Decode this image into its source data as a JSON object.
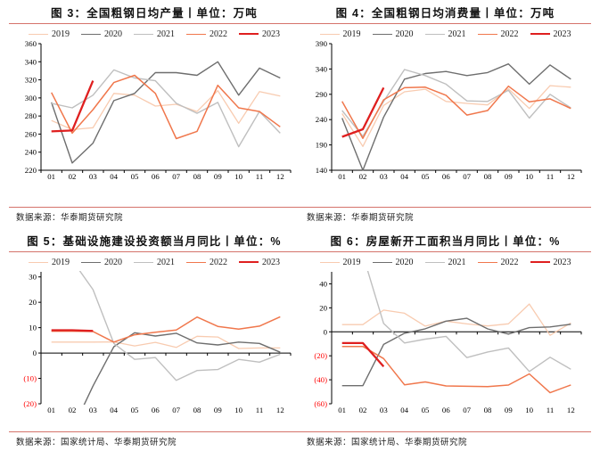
{
  "page": {
    "background": "#FFFFFF"
  },
  "colors": {
    "series_2019": "#F8CBB0",
    "series_2020": "#6E6E6E",
    "series_2021": "#BFBFBF",
    "series_2022": "#F0774C",
    "series_2023": "#DF1F1F",
    "divider": "#D5736B",
    "negative_tick": "#FF0000",
    "axis": "#000000"
  },
  "chart_data": [
    {
      "type": "line",
      "title": "图 3：全国粗钢日均产量丨单位：万吨",
      "source": "数据来源：华泰期货研究院",
      "categories": [
        "01",
        "02",
        "03",
        "04",
        "05",
        "06",
        "07",
        "08",
        "09",
        "10",
        "11",
        "12"
      ],
      "ylim": [
        220,
        360
      ],
      "grid": false,
      "legend_position": "top",
      "yticks": [
        {
          "v": 220,
          "label": "220"
        },
        {
          "v": 240,
          "label": "240"
        },
        {
          "v": 260,
          "label": "260"
        },
        {
          "v": 280,
          "label": "280"
        },
        {
          "v": 300,
          "label": "300"
        },
        {
          "v": 320,
          "label": "320"
        },
        {
          "v": 340,
          "label": "340"
        },
        {
          "v": 360,
          "label": "360"
        }
      ],
      "series": [
        {
          "name": "2019",
          "color": "#F8CBB0",
          "width": 1.3,
          "values": [
            275,
            265,
            267,
            305,
            303,
            291,
            293,
            285,
            308,
            272,
            307,
            302
          ]
        },
        {
          "name": "2020",
          "color": "#6E6E6E",
          "width": 1.4,
          "values": [
            295,
            228,
            250,
            297,
            305,
            328,
            328,
            325,
            340,
            303,
            333,
            322
          ]
        },
        {
          "name": "2021",
          "color": "#BFBFBF",
          "width": 1.4,
          "values": [
            294,
            289,
            303,
            331,
            322,
            319,
            294,
            283,
            295,
            246,
            285,
            261
          ]
        },
        {
          "name": "2022",
          "color": "#F0774C",
          "width": 1.5,
          "values": [
            306,
            261,
            287,
            317,
            325,
            305,
            255,
            263,
            314,
            289,
            285,
            268
          ]
        },
        {
          "name": "2023",
          "color": "#DF1F1F",
          "width": 2.3,
          "values": [
            263,
            264,
            319
          ]
        }
      ]
    },
    {
      "type": "line",
      "title": "图 4：全国粗钢日均消费量丨单位：万吨",
      "source": "数据来源：华泰期货研究院",
      "categories": [
        "01",
        "02",
        "03",
        "04",
        "05",
        "06",
        "07",
        "08",
        "09",
        "10",
        "11",
        "12"
      ],
      "ylim": [
        140,
        390
      ],
      "grid": false,
      "legend_position": "top",
      "yticks": [
        {
          "v": 140,
          "label": "140"
        },
        {
          "v": 190,
          "label": "190"
        },
        {
          "v": 240,
          "label": "240"
        },
        {
          "v": 290,
          "label": "290"
        },
        {
          "v": 340,
          "label": "340"
        },
        {
          "v": 390,
          "label": "390"
        }
      ],
      "series": [
        {
          "name": "2019",
          "color": "#F8CBB0",
          "width": 1.3,
          "values": [
            252,
            187,
            268,
            295,
            300,
            276,
            272,
            269,
            301,
            262,
            307,
            304
          ]
        },
        {
          "name": "2020",
          "color": "#6E6E6E",
          "width": 1.4,
          "values": [
            243,
            140,
            245,
            320,
            331,
            335,
            327,
            333,
            350,
            310,
            348,
            320
          ]
        },
        {
          "name": "2021",
          "color": "#BFBFBF",
          "width": 1.4,
          "values": [
            258,
            207,
            276,
            339,
            327,
            310,
            277,
            276,
            298,
            243,
            290,
            263
          ]
        },
        {
          "name": "2022",
          "color": "#F0774C",
          "width": 1.5,
          "values": [
            276,
            203,
            279,
            303,
            304,
            288,
            249,
            258,
            306,
            275,
            281,
            262
          ]
        },
        {
          "name": "2023",
          "color": "#DF1F1F",
          "width": 2.3,
          "values": [
            206,
            221,
            303
          ]
        }
      ]
    },
    {
      "type": "line",
      "title": "图 5：基础设施建设投资额当月同比丨单位：%",
      "source": "数据来源：国家统计局、华泰期货研究院",
      "categories": [
        "01",
        "02",
        "03",
        "04",
        "05",
        "06",
        "07",
        "08",
        "09",
        "10",
        "11",
        "12"
      ],
      "ylim": [
        -20,
        32
      ],
      "grid": false,
      "legend_position": "top",
      "yticks": [
        {
          "v": -20,
          "label": "(20)"
        },
        {
          "v": -10,
          "label": "(10)"
        },
        {
          "v": 0,
          "label": "0"
        },
        {
          "v": 10,
          "label": "10"
        },
        {
          "v": 20,
          "label": "20"
        },
        {
          "v": 30,
          "label": "30"
        }
      ],
      "series": [
        {
          "name": "2019",
          "color": "#F8CBB0",
          "width": 1.3,
          "values": [
            4.3,
            4.3,
            4.3,
            4.4,
            2.8,
            4.2,
            2.2,
            6.6,
            6.3,
            1.8,
            2.0,
            2.0
          ]
        },
        {
          "name": "2020",
          "color": "#6E6E6E",
          "width": 1.4,
          "values": [
            -30.3,
            -30.3,
            -13.0,
            2.5,
            8.0,
            6.7,
            7.8,
            4.0,
            3.2,
            4.3,
            3.8,
            0.3
          ]
        },
        {
          "name": "2021",
          "color": "#BFBFBF",
          "width": 1.4,
          "values": [
            36.6,
            36.6,
            25.0,
            3.8,
            -2.5,
            -1.8,
            -10.8,
            -6.9,
            -6.5,
            -2.5,
            -3.6,
            -0.5
          ]
        },
        {
          "name": "2022",
          "color": "#F0774C",
          "width": 1.5,
          "values": [
            8.6,
            8.6,
            8.5,
            4.3,
            7.2,
            8.2,
            9.1,
            14.2,
            10.5,
            9.4,
            10.6,
            14.3
          ]
        },
        {
          "name": "2023",
          "color": "#DF1F1F",
          "width": 2.3,
          "values": [
            9.0,
            9.0,
            8.7
          ]
        }
      ]
    },
    {
      "type": "line",
      "title": "图 6：房屋新开工面积当月同比丨单位：%",
      "source": "数据来源：国家统计局、华泰期货研究院",
      "categories": [
        "01",
        "02",
        "03",
        "04",
        "05",
        "06",
        "07",
        "08",
        "09",
        "10",
        "11",
        "12"
      ],
      "ylim": [
        -60,
        50
      ],
      "grid": false,
      "legend_position": "top",
      "yticks": [
        {
          "v": -60,
          "label": "(60)"
        },
        {
          "v": -40,
          "label": "(40)"
        },
        {
          "v": -20,
          "label": "(20)"
        },
        {
          "v": 0,
          "label": "0"
        },
        {
          "v": 20,
          "label": "20"
        },
        {
          "v": 40,
          "label": "40"
        }
      ],
      "series": [
        {
          "name": "2019",
          "color": "#F8CBB0",
          "width": 1.3,
          "values": [
            6.0,
            6.0,
            18.1,
            15.5,
            4.7,
            8.9,
            6.6,
            4.9,
            6.7,
            23.2,
            -2.9,
            7.4
          ]
        },
        {
          "name": "2020",
          "color": "#6E6E6E",
          "width": 1.4,
          "values": [
            -44.9,
            -44.9,
            -10.5,
            -1.2,
            2.5,
            8.9,
            11.3,
            2.4,
            -1.9,
            3.5,
            4.1,
            6.3
          ]
        },
        {
          "name": "2021",
          "color": "#BFBFBF",
          "width": 1.4,
          "values": [
            64.3,
            64.3,
            7.0,
            -9.3,
            -6.1,
            -3.8,
            -21.5,
            -16.8,
            -13.5,
            -33.1,
            -21.2,
            -31.2
          ]
        },
        {
          "name": "2022",
          "color": "#F0774C",
          "width": 1.5,
          "values": [
            -12.2,
            -12.2,
            -22.3,
            -44.2,
            -41.8,
            -45.1,
            -45.4,
            -45.7,
            -44.4,
            -35.1,
            -50.8,
            -44.3
          ]
        },
        {
          "name": "2023",
          "color": "#DF1F1F",
          "width": 2.3,
          "values": [
            -9.4,
            -9.4,
            -29.0
          ]
        }
      ]
    }
  ]
}
